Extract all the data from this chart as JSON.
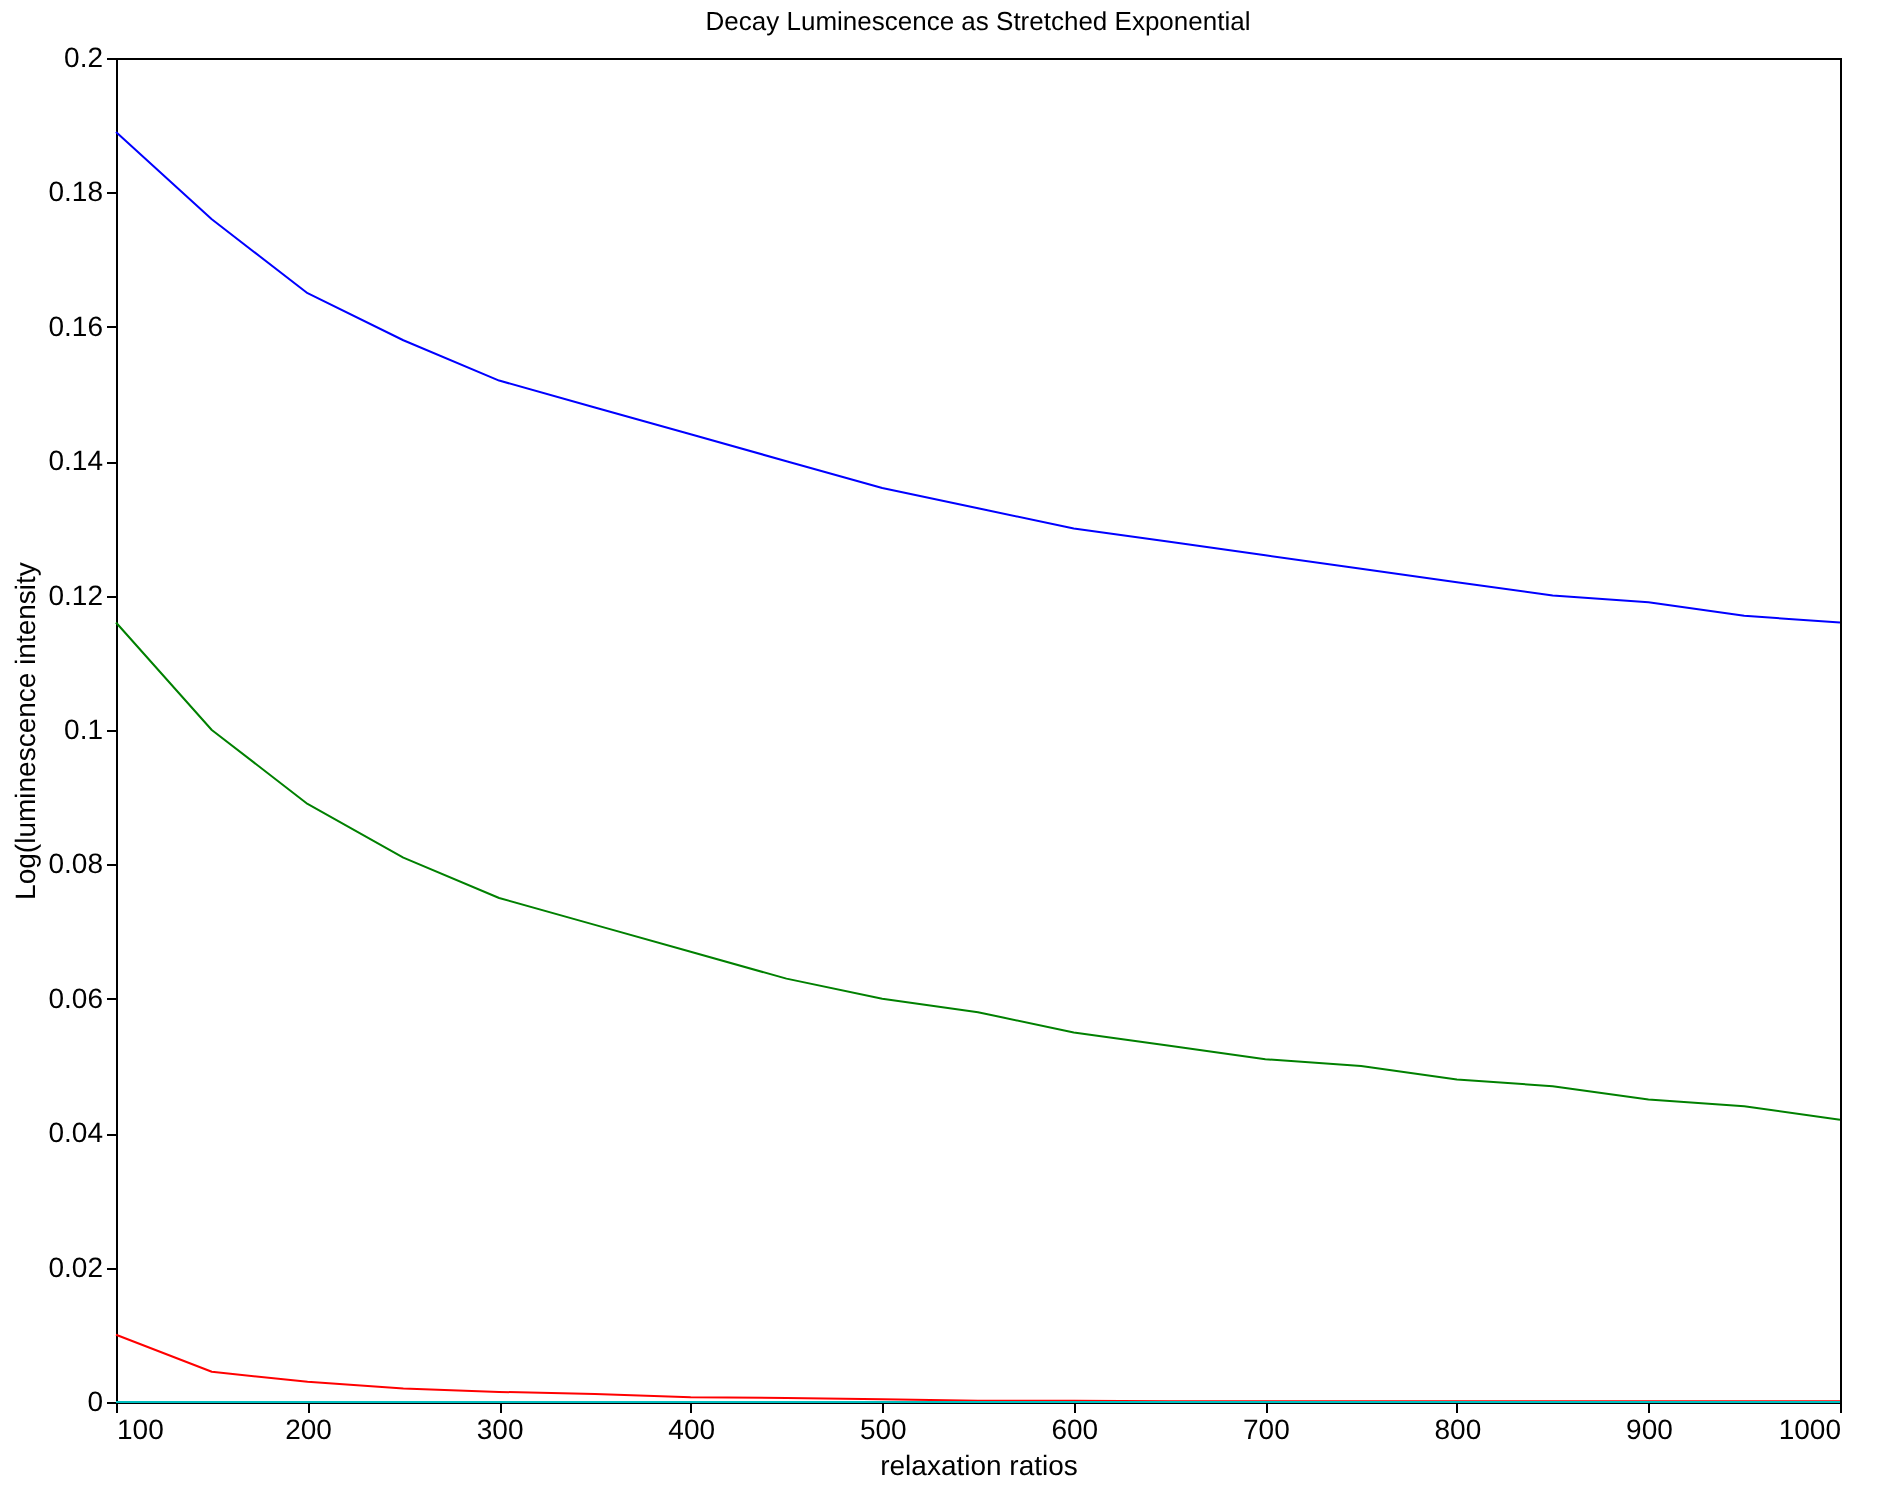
{
  "chart_data": {
    "type": "line",
    "title": "Decay Luminescence as Stretched Exponential",
    "xlabel": "relaxation ratios",
    "ylabel": "Log(luminescence intensity",
    "x": [
      100,
      150,
      200,
      250,
      300,
      350,
      400,
      450,
      500,
      550,
      600,
      650,
      700,
      750,
      800,
      850,
      900,
      950,
      1000
    ],
    "series": [
      {
        "color": "#0000ff",
        "values": [
          0.189,
          0.176,
          0.165,
          0.158,
          0.152,
          0.148,
          0.144,
          0.14,
          0.136,
          0.133,
          0.13,
          0.128,
          0.126,
          0.124,
          0.122,
          0.12,
          0.119,
          0.117,
          0.116
        ]
      },
      {
        "color": "#008000",
        "values": [
          0.116,
          0.1,
          0.089,
          0.081,
          0.075,
          0.071,
          0.067,
          0.063,
          0.06,
          0.058,
          0.055,
          0.053,
          0.051,
          0.05,
          0.048,
          0.047,
          0.045,
          0.044,
          0.042
        ]
      },
      {
        "color": "#ff0000",
        "values": [
          0.01,
          0.0045,
          0.003,
          0.002,
          0.0015,
          0.0012,
          0.0007,
          0.0006,
          0.0004,
          0.0002,
          0.0002,
          0.0001,
          0.0001,
          0.0001,
          0.0001,
          0.0001,
          0.0001,
          0.0001,
          0.0001
        ]
      },
      {
        "color": "#00bfbf",
        "values": [
          0,
          0,
          0,
          0,
          0,
          0,
          0,
          0,
          0,
          0,
          0,
          0,
          0,
          0,
          0,
          0,
          0,
          0,
          0
        ]
      }
    ],
    "xlim": [
      100,
      1000
    ],
    "xticks": [
      100,
      200,
      300,
      400,
      500,
      600,
      700,
      800,
      900,
      1000
    ],
    "ylim": [
      0,
      0.2
    ],
    "yticks": [
      0,
      0.02,
      0.04,
      0.06,
      0.08,
      0.1,
      0.12,
      0.14,
      0.16,
      0.18,
      0.2
    ],
    "grid": false,
    "legend": false,
    "marker": "none",
    "line_style": "solid"
  }
}
